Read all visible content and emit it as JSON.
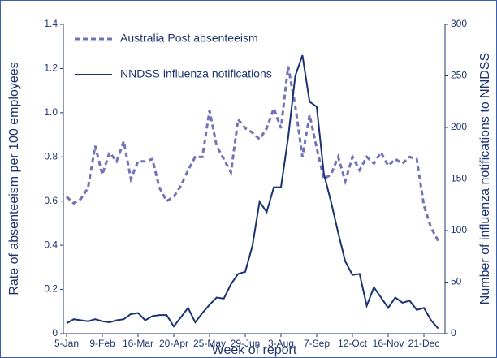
{
  "chart_data": {
    "type": "line",
    "xlabel": "Week of report",
    "ylabel": "Rate of absenteeism per 100 employees",
    "y2label": "Number of influenza notifications to NNDSS",
    "categories": [
      "5-Jan",
      null,
      null,
      null,
      null,
      "9-Feb",
      null,
      null,
      null,
      null,
      "16-Mar",
      null,
      null,
      null,
      null,
      "20-Apr",
      null,
      null,
      null,
      null,
      "25-May",
      null,
      null,
      null,
      null,
      "29-Jun",
      null,
      null,
      null,
      null,
      "3-Aug",
      null,
      null,
      null,
      null,
      "7-Sep",
      null,
      null,
      null,
      null,
      "12-Oct",
      null,
      null,
      null,
      null,
      "16-Nov",
      null,
      null,
      null,
      null,
      "21-Dec",
      null,
      null
    ],
    "ylim": [
      0,
      1.4
    ],
    "yticks": [
      0,
      0.2,
      0.4,
      0.6,
      0.8,
      {
        "value": 1,
        "label": "1.0"
      },
      1.2,
      1.4
    ],
    "y2lim": [
      0,
      300
    ],
    "y2ticks": [
      0,
      50,
      100,
      150,
      200,
      250,
      300
    ],
    "legend": "upper left",
    "series": [
      {
        "name": "Australia Post absenteeism",
        "color": "#7272b8",
        "style": "dashed",
        "values": [
          0.62,
          0.59,
          0.61,
          0.66,
          0.85,
          0.72,
          0.82,
          0.78,
          0.87,
          0.7,
          0.78,
          0.78,
          0.79,
          0.66,
          0.6,
          0.62,
          0.67,
          0.74,
          0.8,
          0.8,
          1.01,
          0.85,
          0.79,
          0.73,
          0.97,
          0.93,
          0.91,
          0.88,
          0.93,
          1.02,
          0.93,
          1.21,
          1.03,
          0.8,
          0.99,
          0.84,
          0.7,
          0.72,
          0.8,
          0.69,
          0.8,
          0.74,
          0.8,
          0.77,
          0.82,
          0.76,
          0.79,
          0.77,
          0.8,
          0.79,
          0.58,
          0.48,
          0.42
        ]
      },
      {
        "name": "NNDSS influenza notifications",
        "color": "#1a3272",
        "style": "solid",
        "axis": "y2",
        "values": [
          10,
          14,
          13,
          12,
          14,
          12,
          11,
          13,
          14,
          19,
          20,
          13,
          17,
          18,
          18,
          7,
          16,
          25,
          11,
          20,
          28,
          35,
          34,
          48,
          58,
          60,
          85,
          128,
          118,
          142,
          142,
          190,
          250,
          270,
          225,
          220,
          155,
          128,
          98,
          70,
          57,
          58,
          27,
          45,
          35,
          25,
          35,
          30,
          32,
          23,
          25,
          13,
          5
        ]
      }
    ]
  }
}
